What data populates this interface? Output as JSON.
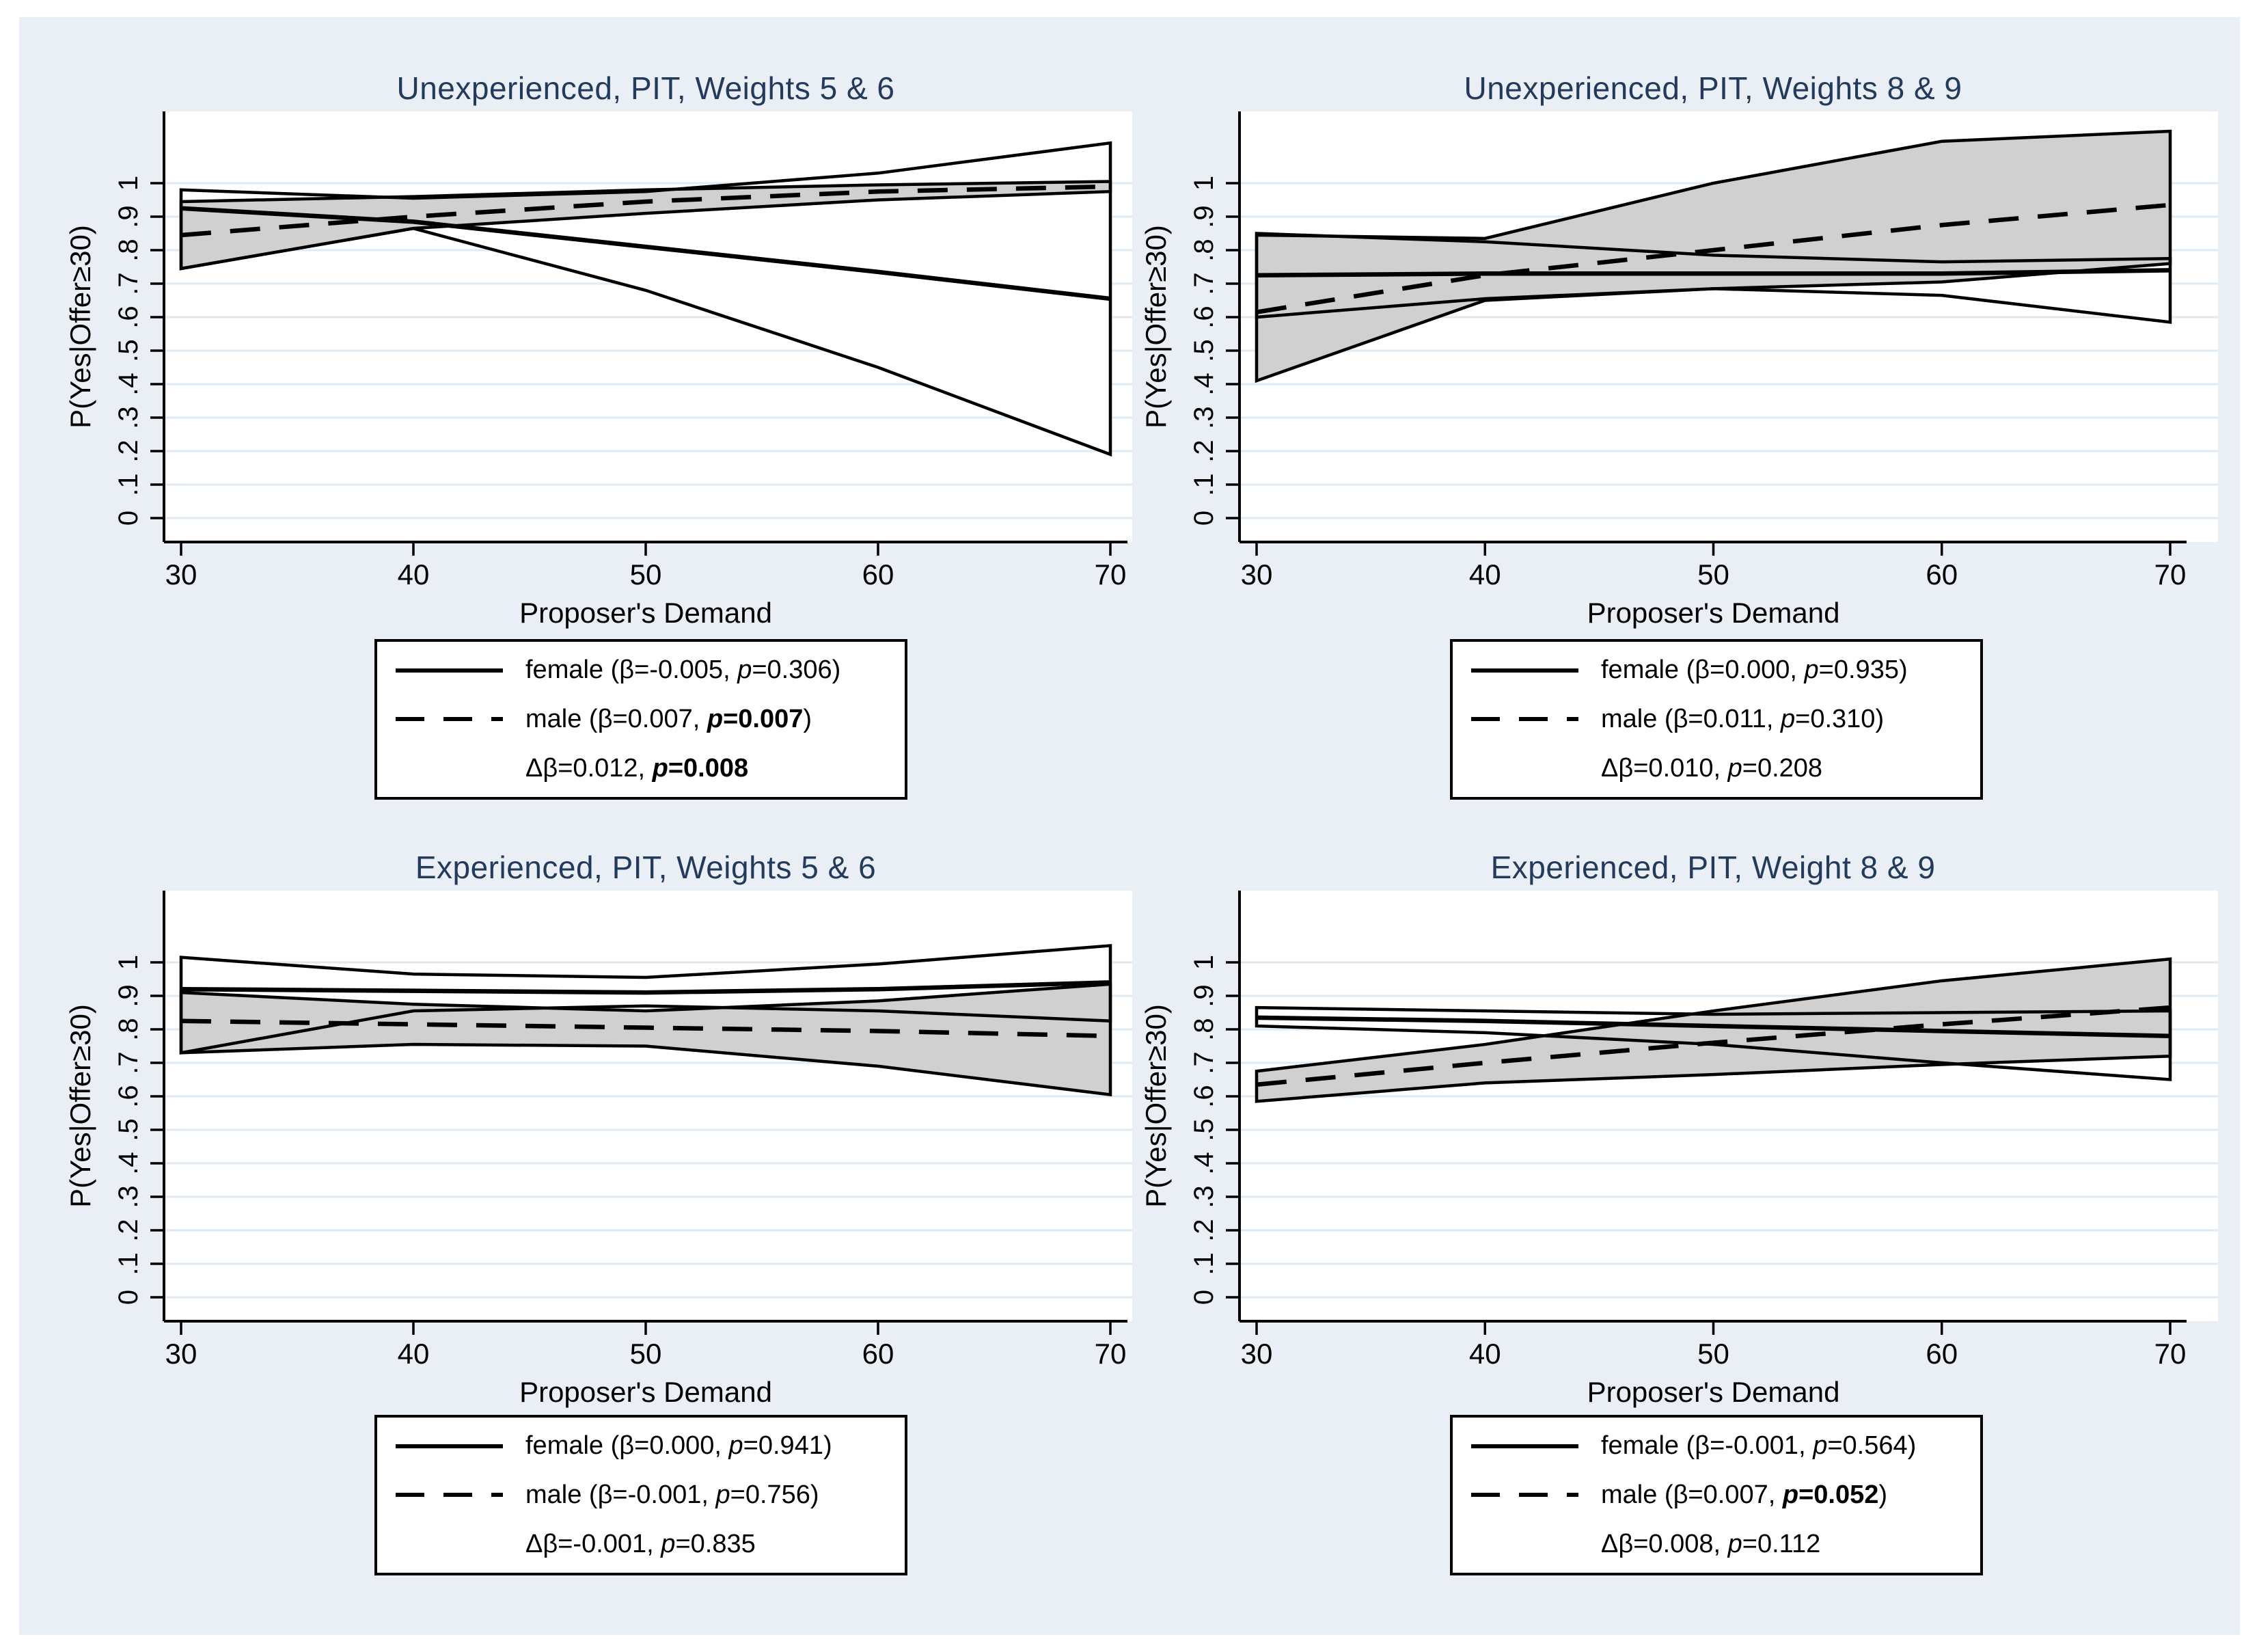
{
  "page": {
    "background": "#e9eff4",
    "plot_background": "#ffffff",
    "grid_color": "#dfeaf2",
    "band_color": "#d0d0d0",
    "line_color": "#000000",
    "title_color": "#223a5c"
  },
  "axes": {
    "x_label": "Proposer's Demand",
    "y_label": "P(Yes|Offer≥30)",
    "x_ticks": [
      "30",
      "40",
      "50",
      "60",
      "70"
    ],
    "y_ticks": [
      "0",
      ".1",
      ".2",
      ".3",
      ".4",
      ".5",
      ".6",
      ".7",
      ".8",
      ".9",
      "1"
    ]
  },
  "chart_data": [
    {
      "type": "line",
      "title": "Unexperienced, PIT, Weights 5 & 6",
      "xlabel": "Proposer's Demand",
      "ylabel": "P(Yes|Offer≥30)",
      "x": [
        30,
        40,
        50,
        60,
        70
      ],
      "ylim": [
        0,
        1.2
      ],
      "grid": true,
      "legend_position": "below",
      "series": [
        {
          "name": "female",
          "line": "solid",
          "ci_fill": "white",
          "center": [
            0.925,
            0.885,
            0.81,
            0.735,
            0.655
          ],
          "ci_upper": [
            0.98,
            0.955,
            0.975,
            1.03,
            1.12
          ],
          "ci_lower": [
            0.745,
            0.865,
            0.68,
            0.45,
            0.19
          ]
        },
        {
          "name": "male",
          "line": "dashed",
          "ci_fill": "gray",
          "center": [
            0.845,
            0.9,
            0.945,
            0.975,
            0.99
          ],
          "ci_upper": [
            0.945,
            0.96,
            0.98,
            0.995,
            1.005
          ],
          "ci_lower": [
            0.745,
            0.865,
            0.91,
            0.95,
            0.975
          ]
        }
      ],
      "legend": [
        {
          "symbol": "solid",
          "pre": "female (β=-0.005, ",
          "p": "p",
          "rest": "=0.306",
          "close": ")",
          "strong": false
        },
        {
          "symbol": "dashed",
          "pre": "male (β=0.007, ",
          "p": "p",
          "rest": "=0.007",
          "close": ")",
          "strong": true
        },
        {
          "symbol": "none",
          "pre": "Δβ=0.012, ",
          "p": "p",
          "rest": "=0.008",
          "close": "",
          "strong": true
        }
      ]
    },
    {
      "type": "line",
      "title": "Unexperienced, PIT, Weights 8 & 9",
      "xlabel": "Proposer's Demand",
      "ylabel": "P(Yes|Offer≥30)",
      "x": [
        30,
        40,
        50,
        60,
        70
      ],
      "ylim": [
        0,
        1.2
      ],
      "grid": true,
      "legend_position": "below",
      "series": [
        {
          "name": "female",
          "line": "solid",
          "ci_fill": "white",
          "center": [
            0.725,
            0.73,
            0.73,
            0.73,
            0.74
          ],
          "ci_upper": [
            0.85,
            0.825,
            0.785,
            0.765,
            0.775
          ],
          "ci_lower": [
            0.6,
            0.655,
            0.685,
            0.665,
            0.585
          ]
        },
        {
          "name": "male",
          "line": "dashed",
          "ci_fill": "gray",
          "center": [
            0.615,
            0.725,
            0.8,
            0.875,
            0.935
          ],
          "ci_upper": [
            0.845,
            0.835,
            1.0,
            1.125,
            1.155
          ],
          "ci_lower": [
            0.41,
            0.65,
            0.685,
            0.705,
            0.76
          ]
        }
      ],
      "legend": [
        {
          "symbol": "solid",
          "pre": "female (β=0.000, ",
          "p": "p",
          "rest": "=0.935",
          "close": ")",
          "strong": false
        },
        {
          "symbol": "dashed",
          "pre": "male (β=0.011, ",
          "p": "p",
          "rest": "=0.310",
          "close": ")",
          "strong": false
        },
        {
          "symbol": "none",
          "pre": "Δβ=0.010, ",
          "p": "p",
          "rest": "=0.208",
          "close": "",
          "strong": false
        }
      ]
    },
    {
      "type": "line",
      "title": "Experienced, PIT, Weights 5 & 6",
      "xlabel": "Proposer's Demand",
      "ylabel": "P(Yes|Offer≥30)",
      "x": [
        30,
        40,
        50,
        60,
        70
      ],
      "ylim": [
        0,
        1.2
      ],
      "grid": true,
      "legend_position": "below",
      "series": [
        {
          "name": "female",
          "line": "solid",
          "ci_fill": "white",
          "center": [
            0.92,
            0.915,
            0.91,
            0.92,
            0.94
          ],
          "ci_upper": [
            1.015,
            0.965,
            0.955,
            0.995,
            1.05
          ],
          "ci_lower": [
            0.73,
            0.855,
            0.87,
            0.855,
            0.825
          ]
        },
        {
          "name": "male",
          "line": "dashed",
          "ci_fill": "gray",
          "center": [
            0.825,
            0.815,
            0.805,
            0.795,
            0.78
          ],
          "ci_upper": [
            0.91,
            0.875,
            0.855,
            0.885,
            0.935
          ],
          "ci_lower": [
            0.73,
            0.755,
            0.75,
            0.69,
            0.605
          ]
        }
      ],
      "legend": [
        {
          "symbol": "solid",
          "pre": "female (β=0.000, ",
          "p": "p",
          "rest": "=0.941",
          "close": ")",
          "strong": false
        },
        {
          "symbol": "dashed",
          "pre": "male (β=-0.001, ",
          "p": "p",
          "rest": "=0.756",
          "close": ")",
          "strong": false
        },
        {
          "symbol": "none",
          "pre": "Δβ=-0.001, ",
          "p": "p",
          "rest": "=0.835",
          "close": "",
          "strong": false
        }
      ]
    },
    {
      "type": "line",
      "title": "Experienced, PIT, Weight 8 & 9",
      "xlabel": "Proposer's Demand",
      "ylabel": "P(Yes|Offer≥30)",
      "x": [
        30,
        40,
        50,
        60,
        70
      ],
      "ylim": [
        0,
        1.2
      ],
      "grid": true,
      "legend_position": "below",
      "series": [
        {
          "name": "female",
          "line": "solid",
          "ci_fill": "white",
          "center": [
            0.835,
            0.825,
            0.81,
            0.795,
            0.78
          ],
          "ci_upper": [
            0.865,
            0.855,
            0.845,
            0.85,
            0.855
          ],
          "ci_lower": [
            0.81,
            0.79,
            0.755,
            0.7,
            0.65
          ]
        },
        {
          "name": "male",
          "line": "dashed",
          "ci_fill": "gray",
          "center": [
            0.635,
            0.7,
            0.76,
            0.815,
            0.865
          ],
          "ci_upper": [
            0.675,
            0.755,
            0.855,
            0.945,
            1.01
          ],
          "ci_lower": [
            0.585,
            0.64,
            0.665,
            0.695,
            0.72
          ]
        }
      ],
      "legend": [
        {
          "symbol": "solid",
          "pre": "female (β=-0.001, ",
          "p": "p",
          "rest": "=0.564",
          "close": ")",
          "strong": false
        },
        {
          "symbol": "dashed",
          "pre": "male (β=0.007, ",
          "p": "p",
          "rest": "=0.052",
          "close": ")",
          "strong": true
        },
        {
          "symbol": "none",
          "pre": "Δβ=0.008, ",
          "p": "p",
          "rest": "=0.112",
          "close": "",
          "strong": false
        }
      ]
    }
  ]
}
